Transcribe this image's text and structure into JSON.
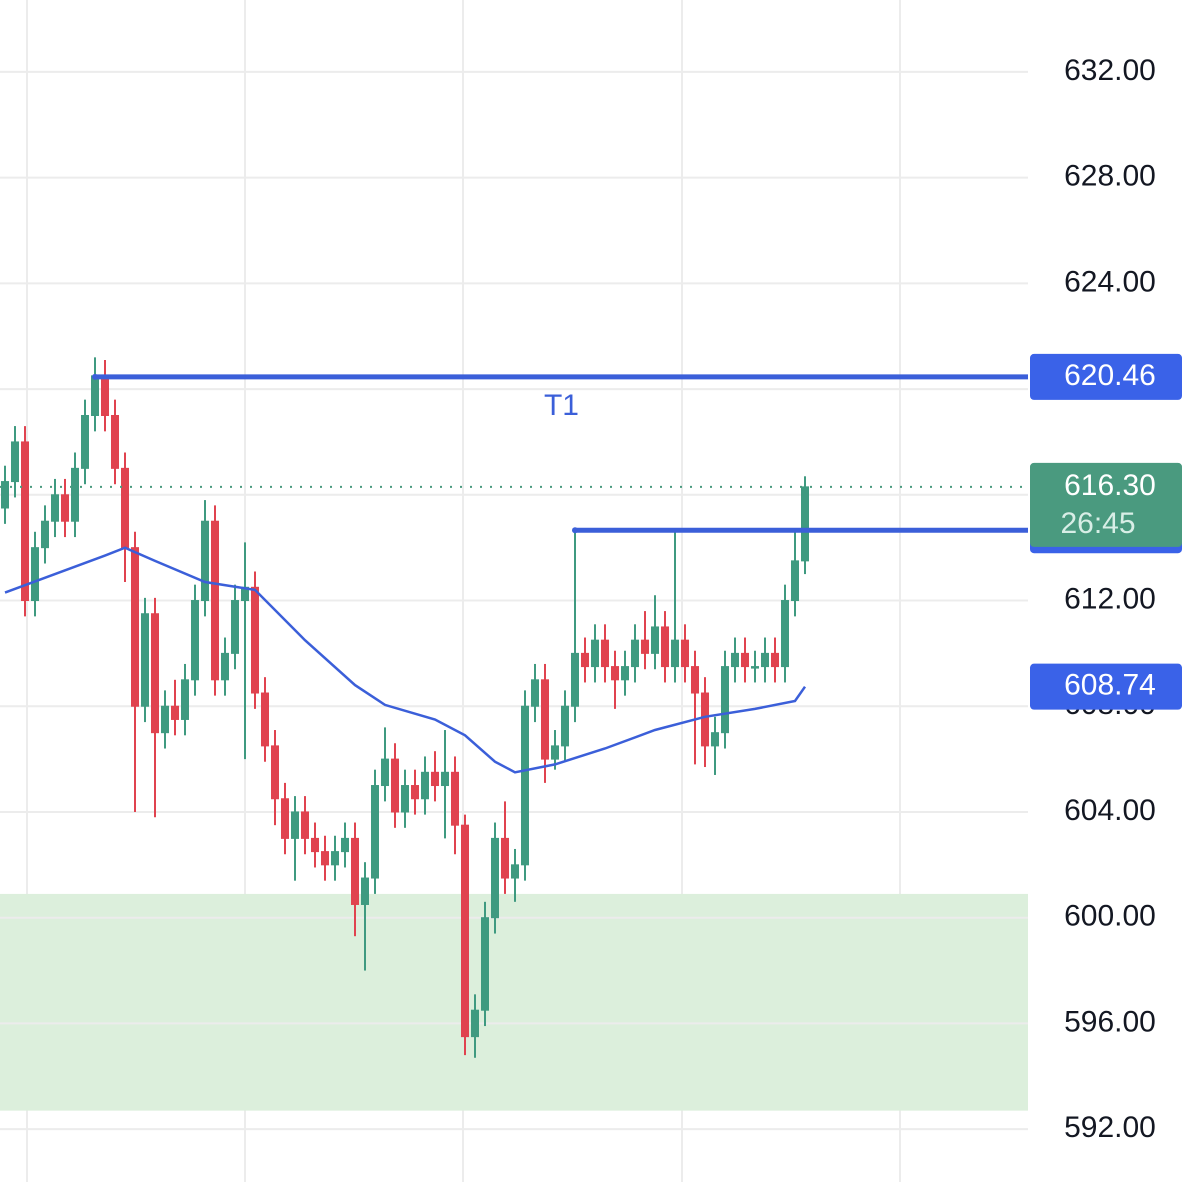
{
  "chart_data": {
    "type": "candlestick",
    "xlim": [
      -0.5,
      102.3
    ],
    "ylim": [
      590,
      634.72
    ],
    "yticks": [
      {
        "value": 592,
        "label": "592.00"
      },
      {
        "value": 596,
        "label": "596.00"
      },
      {
        "value": 600,
        "label": "600.00"
      },
      {
        "value": 604,
        "label": "604.00"
      },
      {
        "value": 608,
        "label": "608.00"
      },
      {
        "value": 612,
        "label": "612.00"
      },
      {
        "value": 616,
        "label": "616.00"
      },
      {
        "value": 620,
        "label": "620.00"
      },
      {
        "value": 624,
        "label": "624.00"
      },
      {
        "value": 628,
        "label": "628.00"
      },
      {
        "value": 632,
        "label": "632.00"
      }
    ],
    "grid": true,
    "up_color": "#3f9a80",
    "down_color": "#e0434f",
    "open": [
      615.5,
      616.5,
      618,
      612,
      614,
      615,
      616,
      615,
      617,
      619,
      620.5,
      619,
      617,
      614,
      608,
      611.5,
      607,
      608,
      607.5,
      609,
      612,
      615,
      609,
      610,
      612,
      612.5,
      608.5,
      606.5,
      604.5,
      603,
      604,
      603,
      602.5,
      602,
      602.5,
      603,
      600.5,
      601.5,
      605,
      606,
      604,
      605,
      604.5,
      605.5,
      605,
      605.5,
      603.5,
      595.5,
      596.5,
      600,
      603,
      601.5,
      602,
      608,
      609,
      606,
      606.5,
      608,
      610,
      609.5,
      610.5,
      609.5,
      609,
      609.5,
      610.5,
      610,
      611,
      609.5,
      610.5,
      609.5,
      608.5,
      606.5,
      607,
      609.5,
      610,
      609.5,
      609.5,
      610,
      609.5,
      612,
      613.5
    ],
    "high": [
      617.1,
      618.6,
      618.6,
      614.6,
      615.6,
      616.6,
      616.6,
      617.6,
      619.6,
      621.2,
      621.1,
      619.6,
      617.6,
      614.6,
      612.1,
      612.1,
      608.6,
      609,
      609.6,
      612.6,
      615.8,
      615.6,
      610.6,
      612.6,
      614.2,
      613.1,
      609.1,
      607.1,
      605.1,
      604.6,
      604.6,
      603.6,
      603.1,
      603.1,
      603.6,
      603.6,
      602.1,
      605.6,
      607.2,
      606.6,
      605.6,
      605.6,
      606.1,
      606.3,
      607.1,
      606.1,
      603.9,
      597.1,
      600.6,
      603.6,
      604.4,
      602.6,
      608.6,
      609.6,
      609.6,
      607.1,
      608.6,
      614.66,
      610.6,
      611.1,
      611.1,
      610.1,
      610.1,
      611.1,
      611.6,
      612.2,
      611.6,
      614.6,
      611.1,
      610.1,
      609.1,
      607.6,
      610.1,
      610.6,
      610.6,
      610.1,
      610.6,
      610.6,
      612.6,
      614.6,
      616.7
    ],
    "low": [
      614.9,
      615.9,
      611.4,
      611.4,
      613.4,
      614.4,
      614.4,
      614.4,
      616.4,
      618.4,
      618.4,
      616.4,
      612.7,
      604,
      607.4,
      603.8,
      606.4,
      606.9,
      606.9,
      608.4,
      611.4,
      608.4,
      608.4,
      609.4,
      606,
      607.9,
      605.9,
      603.5,
      602.4,
      601.4,
      602.4,
      601.9,
      601.4,
      601.4,
      601.9,
      599.3,
      598,
      600.9,
      604.4,
      603.4,
      603.4,
      603.9,
      603.9,
      604.4,
      603,
      602.4,
      594.8,
      594.7,
      595.9,
      599.4,
      600.9,
      600.6,
      601.4,
      607.4,
      605.1,
      605.6,
      605.9,
      607.4,
      608.9,
      608.9,
      608.9,
      607.9,
      608.4,
      608.9,
      609.4,
      609.4,
      608.9,
      608.9,
      608.9,
      605.8,
      605.7,
      605.4,
      606.4,
      608.9,
      608.9,
      608.9,
      608.9,
      608.9,
      608.9,
      611.4,
      613
    ],
    "close": [
      616.5,
      618,
      612,
      614,
      615,
      616,
      615,
      617,
      619,
      620.5,
      619,
      617,
      614,
      608,
      611.5,
      607,
      608,
      607.5,
      609,
      612,
      615,
      609,
      610,
      612,
      612.5,
      608.5,
      606.5,
      604.5,
      603,
      604,
      603,
      602.5,
      602,
      602.5,
      603,
      600.5,
      601.5,
      605,
      606,
      604,
      605,
      604.5,
      605.5,
      605,
      605.5,
      603.5,
      595.5,
      596.5,
      600,
      603,
      601.5,
      602,
      608,
      609,
      606,
      606.5,
      608,
      610,
      609.5,
      610.5,
      609.5,
      609,
      609.5,
      610.5,
      610,
      611,
      609.5,
      610.5,
      609.5,
      608.5,
      606.5,
      607,
      609.5,
      610,
      609.5,
      609.5,
      610,
      609.5,
      612,
      613.5,
      616.3
    ],
    "ma": {
      "color": "#3b5fd9",
      "x": [
        0,
        5,
        10,
        12,
        15,
        20,
        25,
        30,
        35,
        38,
        43,
        46,
        49,
        51,
        55,
        60,
        65,
        70,
        75,
        79,
        80
      ],
      "values": [
        612.3,
        613.0,
        613.7,
        614.0,
        613.5,
        612.7,
        612.4,
        610.5,
        608.8,
        608.05,
        607.5,
        606.9,
        605.9,
        605.5,
        605.8,
        606.4,
        607.1,
        607.6,
        607.9,
        608.2,
        608.74
      ]
    },
    "levels": [
      {
        "value": 620.46,
        "start": 9,
        "text": "T1",
        "color": "#3b5fd9"
      },
      {
        "value": 614.66,
        "start": 57,
        "color": "#3b5fd9"
      }
    ],
    "zone": {
      "from": 592.7,
      "to": 600.9,
      "color": "#dcefdc"
    },
    "last_price": {
      "value": 616.3,
      "label": "616.30",
      "countdown": "26:45",
      "color": "#4a9a7f"
    }
  }
}
